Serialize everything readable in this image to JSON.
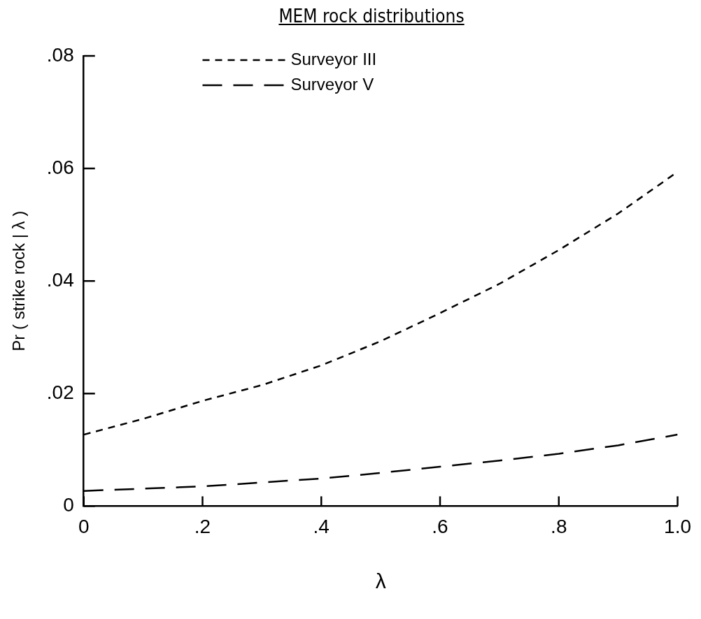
{
  "chart_data": {
    "type": "line",
    "title": "MEM rock distributions",
    "xlabel": "λ",
    "ylabel": "Pr ( strike rock | λ )",
    "x": [
      0,
      0.1,
      0.2,
      0.3,
      0.4,
      0.5,
      0.6,
      0.7,
      0.8,
      0.9,
      1.0
    ],
    "series": [
      {
        "name": "Surveyor III",
        "color": "#000000",
        "line_style": "dashed",
        "values": [
          0.0127,
          0.0155,
          0.0187,
          0.0215,
          0.025,
          0.0293,
          0.0343,
          0.0395,
          0.0455,
          0.052,
          0.0594
        ]
      },
      {
        "name": "Surveyor V",
        "color": "#000000",
        "line_style": "longdash",
        "values": [
          0.0027,
          0.0031,
          0.0035,
          0.0042,
          0.0049,
          0.0059,
          0.007,
          0.0081,
          0.0093,
          0.0108,
          0.0127
        ]
      }
    ],
    "xlim": [
      0,
      1.0
    ],
    "xticks": [
      0,
      {
        "value": 0.2,
        "label": ".2"
      },
      {
        "value": 0.4,
        "label": ".4"
      },
      {
        "value": 0.6,
        "label": ".6"
      },
      {
        "value": 0.8,
        "label": ".8"
      },
      {
        "value": 1.0,
        "label": "1.0"
      }
    ],
    "ylim": [
      0,
      0.08
    ],
    "yticks": [
      0,
      {
        "value": 0.02,
        "label": ".02"
      },
      {
        "value": 0.04,
        "label": ".04"
      },
      {
        "value": 0.06,
        "label": ".06"
      },
      {
        "value": 0.08,
        "label": ".08"
      }
    ],
    "grid": false,
    "legend": "top",
    "marker": "none"
  }
}
